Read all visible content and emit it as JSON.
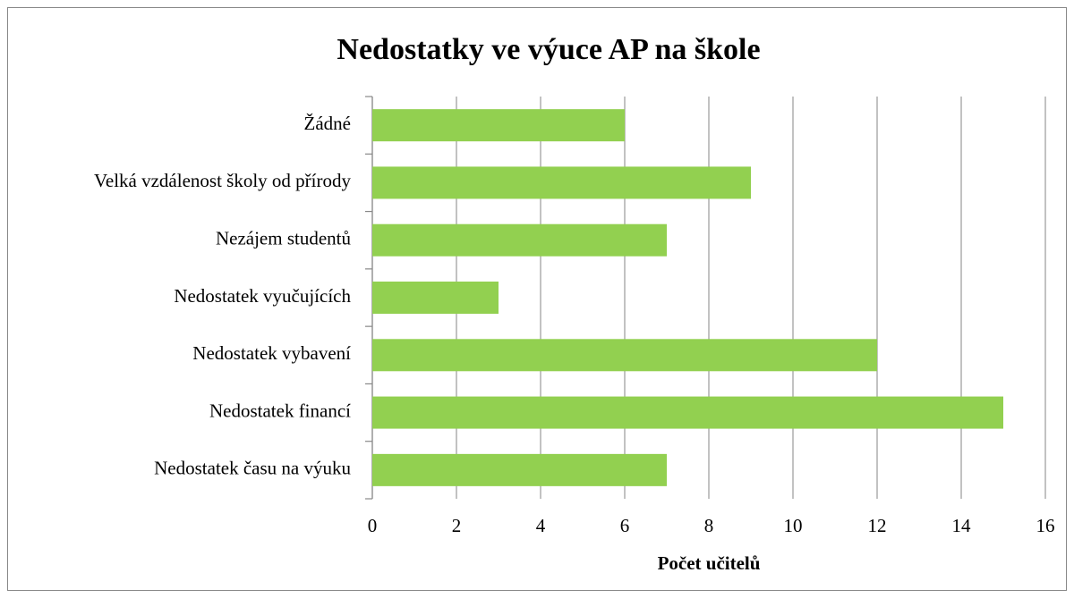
{
  "chart_data": {
    "type": "bar",
    "orientation": "horizontal",
    "title": "Nedostatky ve výuce AP na škole",
    "x_label": "Počet učitelů",
    "categories": [
      "Žádné",
      "Velká vzdálenost školy od přírody",
      "Nezájem studentů",
      "Nedostatek vyučujících",
      "Nedostatek vybavení",
      "Nedostatek financí",
      "Nedostatek času na výuku"
    ],
    "values": [
      6,
      9,
      7,
      3,
      12,
      15,
      7
    ],
    "color": "#92d050",
    "xlim": [
      0,
      16
    ],
    "xticks": [
      0,
      2,
      4,
      6,
      8,
      10,
      12,
      14,
      16
    ],
    "grid": true
  }
}
